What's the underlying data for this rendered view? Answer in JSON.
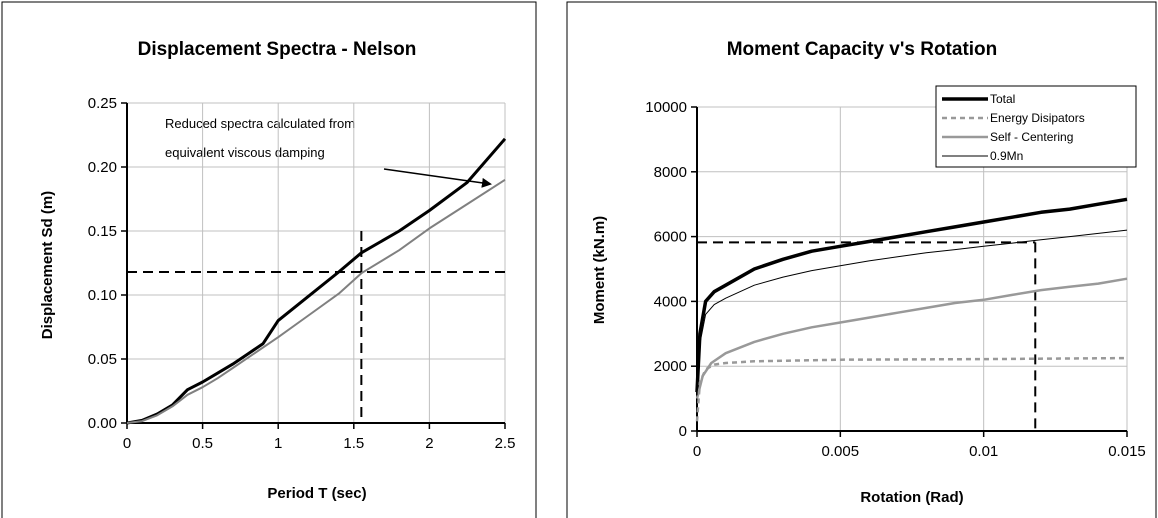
{
  "chart_data": [
    {
      "type": "line",
      "title": "Displacement Spectra - Nelson",
      "xlabel": "Period T (sec)",
      "ylabel": "Displacement Sd (m)",
      "xlim": [
        0,
        2.5
      ],
      "ylim": [
        0,
        0.25
      ],
      "x_ticks": [
        "0",
        "0.5",
        "1",
        "1.5",
        "2",
        "2.5"
      ],
      "y_ticks": [
        "0.00",
        "0.05",
        "0.10",
        "0.15",
        "0.20",
        "0.25"
      ],
      "grid": true,
      "annotation": {
        "lines": [
          "Reduced spectra calculated from",
          "equivalent viscous damping"
        ]
      },
      "series": [
        {
          "name": "",
          "color": "#000000",
          "width": 3,
          "points": [
            [
              0,
              0
            ],
            [
              0.1,
              0.002
            ],
            [
              0.2,
              0.007
            ],
            [
              0.3,
              0.014
            ],
            [
              0.4,
              0.026
            ],
            [
              0.5,
              0.032
            ],
            [
              0.6,
              0.039
            ],
            [
              0.7,
              0.046
            ],
            [
              0.8,
              0.054
            ],
            [
              0.9,
              0.062
            ],
            [
              1.0,
              0.08
            ],
            [
              1.2,
              0.099
            ],
            [
              1.4,
              0.118
            ],
            [
              1.55,
              0.133
            ],
            [
              1.8,
              0.15
            ],
            [
              2.0,
              0.166
            ],
            [
              2.25,
              0.188
            ],
            [
              2.5,
              0.222
            ]
          ]
        },
        {
          "name": "",
          "color": "#808080",
          "width": 2,
          "points": [
            [
              0,
              0
            ],
            [
              0.1,
              0.0015
            ],
            [
              0.2,
              0.006
            ],
            [
              0.3,
              0.013
            ],
            [
              0.4,
              0.022
            ],
            [
              0.5,
              0.028
            ],
            [
              0.6,
              0.035
            ],
            [
              0.7,
              0.043
            ],
            [
              0.8,
              0.051
            ],
            [
              1.0,
              0.067
            ],
            [
              1.2,
              0.084
            ],
            [
              1.4,
              0.101
            ],
            [
              1.55,
              0.117
            ],
            [
              1.8,
              0.135
            ],
            [
              2.0,
              0.152
            ],
            [
              2.25,
              0.171
            ],
            [
              2.5,
              0.19
            ]
          ]
        }
      ],
      "reference_lines": {
        "x": 1.55,
        "y": 0.118
      }
    },
    {
      "type": "line",
      "title": "Moment Capacity v's Rotation",
      "xlabel": "Rotation (Rad)",
      "ylabel": "Moment (kN.m)",
      "xlim": [
        0,
        0.015
      ],
      "ylim": [
        0,
        10000
      ],
      "x_ticks": [
        "0",
        "0.005",
        "0.01",
        "0.015"
      ],
      "y_ticks": [
        "0",
        "2000",
        "4000",
        "6000",
        "8000",
        "10000"
      ],
      "grid": true,
      "legend": "top-right",
      "series": [
        {
          "name": "Total",
          "color": "#000000",
          "width": 3.5,
          "dash": "",
          "points": [
            [
              0,
              1200
            ],
            [
              0.0001,
              3000
            ],
            [
              0.0003,
              4000
            ],
            [
              0.0006,
              4300
            ],
            [
              0.001,
              4500
            ],
            [
              0.002,
              5000
            ],
            [
              0.003,
              5300
            ],
            [
              0.004,
              5550
            ],
            [
              0.005,
              5700
            ],
            [
              0.006,
              5850
            ],
            [
              0.007,
              6000
            ],
            [
              0.008,
              6150
            ],
            [
              0.009,
              6300
            ],
            [
              0.01,
              6450
            ],
            [
              0.011,
              6600
            ],
            [
              0.012,
              6750
            ],
            [
              0.013,
              6850
            ],
            [
              0.014,
              7000
            ],
            [
              0.015,
              7150
            ]
          ]
        },
        {
          "name": "Energy Disipators",
          "color": "#999999",
          "width": 2.5,
          "dash": "5,4",
          "points": [
            [
              0,
              300
            ],
            [
              0.0001,
              1500
            ],
            [
              0.0003,
              1900
            ],
            [
              0.0006,
              2050
            ],
            [
              0.001,
              2100
            ],
            [
              0.002,
              2150
            ],
            [
              0.005,
              2200
            ],
            [
              0.01,
              2220
            ],
            [
              0.015,
              2250
            ]
          ]
        },
        {
          "name": "Self - Centering",
          "color": "#999999",
          "width": 2.5,
          "dash": "",
          "points": [
            [
              0,
              1000
            ],
            [
              0.0002,
              1700
            ],
            [
              0.0005,
              2100
            ],
            [
              0.001,
              2400
            ],
            [
              0.002,
              2750
            ],
            [
              0.003,
              3000
            ],
            [
              0.004,
              3200
            ],
            [
              0.005,
              3350
            ],
            [
              0.006,
              3500
            ],
            [
              0.007,
              3650
            ],
            [
              0.008,
              3800
            ],
            [
              0.009,
              3950
            ],
            [
              0.01,
              4050
            ],
            [
              0.011,
              4200
            ],
            [
              0.012,
              4350
            ],
            [
              0.013,
              4450
            ],
            [
              0.014,
              4550
            ],
            [
              0.015,
              4700
            ]
          ]
        },
        {
          "name": "0.9Mn",
          "color": "#000000",
          "width": 1,
          "dash": "",
          "points": [
            [
              0,
              1100
            ],
            [
              0.0001,
              2700
            ],
            [
              0.0003,
              3600
            ],
            [
              0.0006,
              3900
            ],
            [
              0.001,
              4100
            ],
            [
              0.002,
              4500
            ],
            [
              0.003,
              4750
            ],
            [
              0.004,
              4950
            ],
            [
              0.005,
              5100
            ],
            [
              0.006,
              5250
            ],
            [
              0.007,
              5380
            ],
            [
              0.008,
              5500
            ],
            [
              0.009,
              5600
            ],
            [
              0.01,
              5700
            ],
            [
              0.011,
              5800
            ],
            [
              0.012,
              5900
            ],
            [
              0.013,
              6000
            ],
            [
              0.014,
              6100
            ],
            [
              0.015,
              6200
            ]
          ]
        }
      ],
      "reference_lines": {
        "x": 0.0118,
        "y": 5820
      }
    }
  ]
}
